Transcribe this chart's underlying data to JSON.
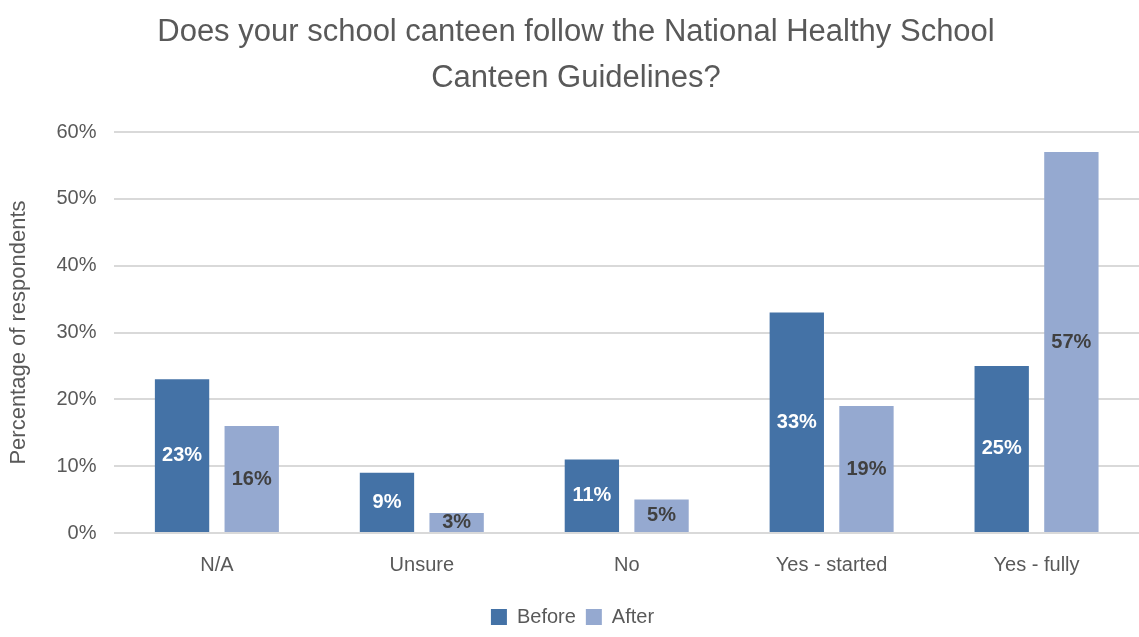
{
  "chart_data": {
    "type": "bar",
    "title": "Does your school canteen follow the National Healthy School Canteen Guidelines?",
    "ylabel": "Percentage of respondents",
    "categories": [
      "N/A",
      "Unsure",
      "No",
      "Yes - started",
      "Yes - fully"
    ],
    "series": [
      {
        "name": "Before",
        "color": "#4472a6",
        "values": [
          23,
          9,
          11,
          33,
          25
        ],
        "value_labels": [
          "23%",
          "9%",
          "11%",
          "33%",
          "25%"
        ]
      },
      {
        "name": "After",
        "color": "#95a9d0",
        "values": [
          16,
          3,
          5,
          19,
          57
        ],
        "value_labels": [
          "16%",
          "3%",
          "5%",
          "19%",
          "57%"
        ]
      }
    ],
    "ylim": [
      0,
      60
    ],
    "yticks": [
      {
        "value": 0,
        "label": "0%"
      },
      {
        "value": 10,
        "label": "10%"
      },
      {
        "value": 20,
        "label": "20%"
      },
      {
        "value": 30,
        "label": "30%"
      },
      {
        "value": 40,
        "label": "40%"
      },
      {
        "value": 50,
        "label": "50%"
      },
      {
        "value": 60,
        "label": "60%"
      }
    ],
    "grid": "y",
    "legend": "bottom"
  }
}
